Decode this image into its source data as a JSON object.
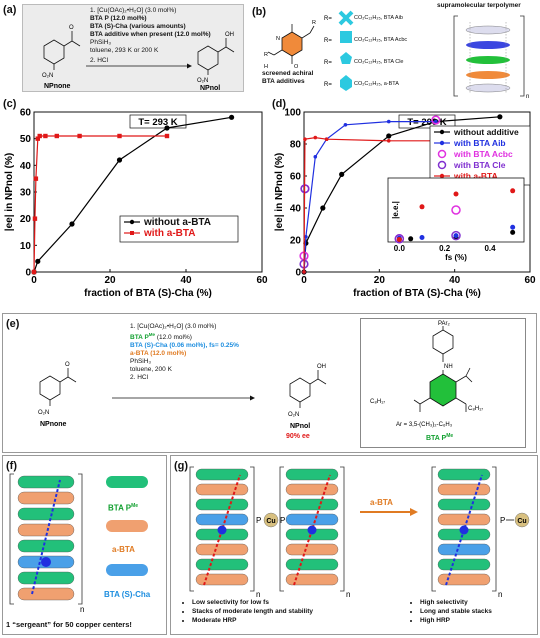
{
  "panel_labels": {
    "a": "(a)",
    "b": "(b)",
    "c": "(c)",
    "d": "(d)",
    "e": "(e)",
    "f": "(f)",
    "g": "(g)"
  },
  "panel_a": {
    "conditions": [
      "1. [Cu(OAc)₂•H₂O] (3.0 mol%)",
      "BTA P (12.0 mol%)",
      "BTA (S)-Cha (various amounts)",
      "BTA additive when present (12.0 mol%)",
      "PhSiH₃",
      "toluene, 293 K or 200 K",
      "2. HCl"
    ],
    "substrate_label": "NPnone",
    "product_label": "NPnol",
    "no2": "O₂N",
    "oh": "OH",
    "o": "O"
  },
  "panel_b": {
    "title": "supramolecular terpolymer",
    "additives_label": "screened achiral BTA additives",
    "r_groups": [
      {
        "label": "R= ",
        "suffix": "CO₂C₁₂H₂₅, BTA Aib"
      },
      {
        "label": "R= ",
        "suffix": "CO₂C₁₂H₂₅, BTA Acbc"
      },
      {
        "label": "R= ",
        "suffix": "CO₂C₁₂H₂₅, BTA Cle"
      },
      {
        "label": "R= ",
        "suffix": "CO₂C₁₂H₂₅, a-BTA"
      }
    ],
    "n": "n"
  },
  "panel_c": {
    "temp_label": "T= 293 K",
    "legend": [
      "without a-BTA",
      "with a-BTA"
    ],
    "colors": {
      "without": "#000000",
      "with": "#e01818"
    },
    "chart_data": {
      "type": "line",
      "xlabel": "fraction of BTA (S)-Cha (%)",
      "ylabel": "|ee| in NPnol (%)",
      "xlim": [
        0,
        60
      ],
      "ylim": [
        0,
        60
      ],
      "xticks": [
        0,
        20,
        40,
        60
      ],
      "yticks": [
        0,
        10,
        20,
        30,
        40,
        50,
        60
      ],
      "series": [
        {
          "name": "without a-BTA",
          "x": [
            0,
            1,
            10,
            22.5,
            35,
            52
          ],
          "y": [
            0,
            4,
            18,
            42,
            54,
            58
          ]
        },
        {
          "name": "with a-BTA",
          "x": [
            0,
            0.25,
            0.5,
            1,
            1.5,
            3,
            6,
            12,
            22.5,
            35
          ],
          "y": [
            0,
            20,
            35,
            50,
            51,
            51,
            51,
            51,
            51,
            51
          ]
        }
      ]
    }
  },
  "panel_d": {
    "temp_label": "T= 200 K",
    "legend": [
      "without additive",
      "with BTA Aib",
      "with BTA Acbc",
      "with BTA Cle",
      "with a-BTA"
    ],
    "colors": {
      "none": "#000000",
      "aib": "#2030e0",
      "acbc": "#e030e0",
      "cle": "#8030d0",
      "abta": "#e01818"
    },
    "chart_data": {
      "type": "line",
      "xlabel": "fraction of BTA (S)-Cha (%)",
      "ylabel": "|ee| in NPnol (%)",
      "xlim": [
        0,
        60
      ],
      "ylim": [
        0,
        100
      ],
      "xticks": [
        0,
        20,
        40,
        60
      ],
      "yticks": [
        0,
        20,
        40,
        60,
        80,
        100
      ],
      "series": [
        {
          "name": "without additive",
          "x": [
            0,
            0.5,
            5,
            10,
            22.5,
            35,
            52
          ],
          "y": [
            0,
            18,
            40,
            61,
            85,
            94,
            97
          ]
        },
        {
          "name": "with BTA Aib",
          "x": [
            0,
            0.5,
            3,
            6,
            11,
            22.5,
            35
          ],
          "y": [
            0,
            22,
            72,
            83,
            92,
            94,
            94
          ]
        },
        {
          "name": "with BTA Acbc",
          "x": [
            0,
            0.25,
            35
          ],
          "y": [
            10,
            52,
            95
          ]
        },
        {
          "name": "with BTA Cle",
          "x": [
            0,
            0.25,
            35
          ],
          "y": [
            5,
            52,
            82
          ]
        },
        {
          "name": "with a-BTA",
          "x": [
            0,
            0.25,
            3,
            6,
            22.5,
            35
          ],
          "y": [
            0,
            83,
            84,
            83,
            82,
            82
          ]
        }
      ]
    },
    "inset": {
      "xlabel": "fs (%)",
      "ylabel": "|e.e.|",
      "xticks": [
        "0.0",
        "0.2",
        "0.4"
      ],
      "xlim": [
        -0.05,
        0.55
      ],
      "ylim": [
        0,
        1
      ],
      "points": [
        {
          "series": "none",
          "x": 0,
          "y": 0.04
        },
        {
          "series": "none",
          "x": 0.05,
          "y": 0.05
        },
        {
          "series": "none",
          "x": 0.25,
          "y": 0.07
        },
        {
          "series": "none",
          "x": 0.5,
          "y": 0.15
        },
        {
          "series": "aib",
          "x": 0,
          "y": 0.06
        },
        {
          "series": "aib",
          "x": 0.1,
          "y": 0.07
        },
        {
          "series": "aib",
          "x": 0.25,
          "y": 0.1
        },
        {
          "series": "aib",
          "x": 0.5,
          "y": 0.23
        },
        {
          "series": "acbc",
          "x": 0,
          "y": 0.05
        },
        {
          "series": "acbc",
          "x": 0.25,
          "y": 0.5
        },
        {
          "series": "cle",
          "x": 0,
          "y": 0.05
        },
        {
          "series": "cle",
          "x": 0.25,
          "y": 0.1
        },
        {
          "series": "abta",
          "x": 0,
          "y": 0.04
        },
        {
          "series": "abta",
          "x": 0.1,
          "y": 0.55
        },
        {
          "series": "abta",
          "x": 0.25,
          "y": 0.75
        },
        {
          "series": "abta",
          "x": 0.5,
          "y": 0.8
        }
      ]
    }
  },
  "panel_e": {
    "conditions": [
      {
        "text": "1. [Cu(OAc)₂•H₂O] (3.0 mol%)",
        "color": "#111111"
      },
      {
        "text": "BTA P",
        "sup": "Me",
        "after": " (12.0 mol%)",
        "color": "#12a030"
      },
      {
        "text": "BTA (S)-Cha (0.06 mol%), fs= 0.25%",
        "color": "#1c8ddf"
      },
      {
        "text": "a-BTA (12.0 mol%)",
        "color": "#e07b23"
      },
      {
        "text": "PhSiH₃",
        "color": "#111111"
      },
      {
        "text": "toluene, 200 K",
        "color": "#111111"
      },
      {
        "text": "2. HCl",
        "color": "#111111"
      }
    ],
    "substrate_label": "NPnone",
    "product_label": "NPnol",
    "ee_label": "90% ee",
    "struct": {
      "par": "PAr₂",
      "nh": "NH",
      "c8": "C₈H₁₇",
      "c8b": "C₈H₁₇",
      "ar": "Ar = 3,5-(CH₃)₂-C₆H₃",
      "name": "BTA P",
      "name_sup": "Me"
    }
  },
  "panel_f": {
    "legend": [
      "BTA P",
      "a-BTA",
      "BTA (S)-Cha"
    ],
    "legend_sup": "Me",
    "n": "n",
    "caption": "1 “sergeant” for 50 copper centers!"
  },
  "panel_g": {
    "arrow_label": "a-BTA",
    "cu": "Cu",
    "p": "P",
    "n": "n",
    "left_points": [
      "Low selectivity for low fs",
      "Stacks of moderate length and stability",
      "Moderate HRP"
    ],
    "right_points": [
      "High selectivity",
      "Long and stable stacks",
      "High HRP"
    ]
  }
}
